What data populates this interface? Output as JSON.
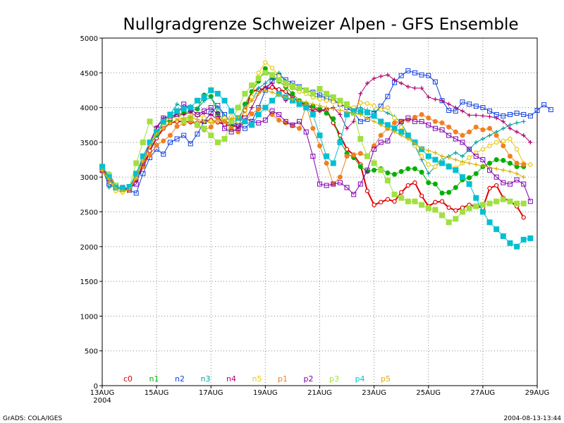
{
  "chart_data": {
    "type": "line",
    "title": "Nullgradgrenze Schweizer Alpen - GFS Ensemble",
    "ylim": [
      0,
      5000
    ],
    "yticks": [
      0,
      500,
      1000,
      1500,
      2000,
      2500,
      3000,
      3500,
      4000,
      4500,
      5000
    ],
    "xlim": [
      0,
      16
    ],
    "xticks": [
      {
        "pos": 0,
        "label": "13AUG",
        "sub": "2004"
      },
      {
        "pos": 2,
        "label": "15AUG"
      },
      {
        "pos": 4,
        "label": "17AUG"
      },
      {
        "pos": 6,
        "label": "19AUG"
      },
      {
        "pos": 8,
        "label": "21AUG"
      },
      {
        "pos": 10,
        "label": "23AUG"
      },
      {
        "pos": 12,
        "label": "25AUG"
      },
      {
        "pos": 14,
        "label": "27AUG"
      },
      {
        "pos": 16,
        "label": "29AUG"
      }
    ],
    "grid": true,
    "footer_left": "GrADS: COLA/IGES",
    "footer_right": "2004-08-13-13:44",
    "step_days": 0.25,
    "series": [
      {
        "name": "c0",
        "color": "#e00000",
        "marker": "circle-open",
        "width": 2,
        "values": [
          3100,
          3000,
          2860,
          2840,
          2820,
          2960,
          3150,
          3380,
          3560,
          3700,
          3780,
          3800,
          3800,
          3790,
          3780,
          3800,
          3820,
          3790,
          3760,
          3730,
          3740,
          3960,
          4230,
          4260,
          4270,
          4290,
          4260,
          4230,
          4150,
          4080,
          4030,
          3990,
          3960,
          3970,
          3780,
          3600,
          3400,
          3320,
          3180,
          2800,
          2600,
          2640,
          2680,
          2650,
          2780,
          2880,
          2920,
          2730,
          2580,
          2640,
          2650,
          2560,
          2520,
          2560,
          2600,
          2580,
          2560,
          2840,
          2880,
          2700,
          2650,
          2580,
          2420
        ]
      },
      {
        "name": "n1",
        "color": "#00b000",
        "marker": "circle-fill",
        "width": 1,
        "values": [
          3150,
          2980,
          2870,
          2830,
          2840,
          3050,
          3250,
          3480,
          3600,
          3780,
          3820,
          3900,
          3920,
          3950,
          3980,
          4180,
          4160,
          3920,
          3800,
          3740,
          3800,
          4050,
          4230,
          4380,
          4560,
          4430,
          4380,
          4300,
          4200,
          4100,
          4050,
          4020,
          3980,
          3920,
          3840,
          3520,
          3340,
          3280,
          3150,
          3080,
          3100,
          3120,
          3060,
          3040,
          3080,
          3120,
          3120,
          3070,
          2920,
          2900,
          2770,
          2780,
          2850,
          2960,
          2990,
          3050,
          3150,
          3200,
          3250,
          3240,
          3200,
          3150,
          3150
        ]
      },
      {
        "name": "n2",
        "color": "#1040e0",
        "marker": "square-open",
        "width": 1,
        "values": [
          3120,
          2900,
          2850,
          2850,
          2810,
          2770,
          3050,
          3280,
          3400,
          3330,
          3500,
          3550,
          3600,
          3480,
          3620,
          3800,
          3920,
          4030,
          3900,
          3780,
          3750,
          3700,
          3800,
          4000,
          4250,
          4380,
          4460,
          4400,
          4350,
          4300,
          4250,
          4220,
          4180,
          4130,
          4100,
          4050,
          4000,
          3930,
          3800,
          3830,
          3910,
          4020,
          4160,
          4360,
          4460,
          4530,
          4500,
          4470,
          4460,
          4370,
          4100,
          3960,
          3950,
          4080,
          4050,
          4020,
          4000,
          3950,
          3900,
          3880,
          3900,
          3920,
          3900,
          3880,
          3960,
          4040,
          3970
        ]
      },
      {
        "name": "n3",
        "color": "#00a0a0",
        "marker": "plus",
        "width": 1,
        "values": [
          3130,
          2850,
          2880,
          2820,
          2850,
          3010,
          3200,
          3450,
          3600,
          3780,
          3900,
          4050,
          4000,
          4020,
          3980,
          4100,
          4150,
          4000,
          3880,
          3790,
          3820,
          4020,
          4100,
          4280,
          4350,
          4450,
          4500,
          4380,
          4300,
          4230,
          4200,
          4150,
          4170,
          4200,
          4120,
          4050,
          4020,
          3980,
          4000,
          3960,
          3950,
          3970,
          3920,
          3870,
          3780,
          3600,
          3450,
          3250,
          3050,
          3150,
          3250,
          3300,
          3350,
          3300,
          3400,
          3500,
          3550,
          3600,
          3650,
          3700,
          3750,
          3780,
          3800
        ]
      },
      {
        "name": "n4",
        "color": "#b00070",
        "marker": "plus",
        "width": 1,
        "values": [
          3130,
          3050,
          2880,
          2830,
          2830,
          2950,
          3250,
          3500,
          3720,
          3850,
          3860,
          3890,
          3900,
          3930,
          3870,
          3920,
          3900,
          3820,
          3800,
          3780,
          3700,
          3800,
          4000,
          4200,
          4300,
          4350,
          4200,
          4100,
          4150,
          4060,
          4000,
          3950,
          3950,
          3980,
          4000,
          3900,
          3700,
          3800,
          4200,
          4350,
          4420,
          4450,
          4470,
          4400,
          4350,
          4300,
          4280,
          4280,
          4150,
          4120,
          4100,
          4050,
          4000,
          3950,
          3890,
          3890,
          3880,
          3870,
          3850,
          3800,
          3700,
          3650,
          3600,
          3500
        ]
      },
      {
        "name": "n5",
        "color": "#e8c800",
        "marker": "circle-open",
        "width": 1,
        "values": [
          3100,
          2960,
          2800,
          2780,
          2820,
          3000,
          3250,
          3480,
          3640,
          3780,
          3850,
          3860,
          3820,
          3880,
          3900,
          3850,
          3800,
          3820,
          3850,
          3870,
          3800,
          3900,
          4150,
          4500,
          4650,
          4570,
          4450,
          4320,
          4280,
          4230,
          4200,
          4150,
          4120,
          4100,
          4080,
          4050,
          4030,
          4000,
          4070,
          4060,
          4020,
          3970,
          4000,
          3850,
          3720,
          3600,
          3450,
          3300,
          3180,
          3150,
          3230,
          3170,
          3130,
          3200,
          3280,
          3350,
          3400,
          3450,
          3500,
          3520,
          3550,
          3400,
          3200,
          3180
        ]
      },
      {
        "name": "p1",
        "color": "#f08020",
        "marker": "circle-fill",
        "width": 1,
        "values": [
          3080,
          2950,
          2850,
          2820,
          2810,
          3030,
          3150,
          3320,
          3460,
          3520,
          3600,
          3730,
          3770,
          3810,
          3740,
          3680,
          3720,
          3850,
          3800,
          3700,
          3650,
          3800,
          3910,
          3980,
          4000,
          3900,
          3820,
          3780,
          3740,
          3700,
          4030,
          3700,
          3450,
          3200,
          2900,
          3000,
          3300,
          3320,
          3340,
          3300,
          3450,
          3600,
          3700,
          3780,
          3800,
          3820,
          3860,
          3900,
          3850,
          3800,
          3780,
          3720,
          3650,
          3600,
          3650,
          3720,
          3680,
          3700,
          3600,
          3450,
          3300,
          3200,
          3180
        ]
      },
      {
        "name": "p2",
        "color": "#8000b0",
        "marker": "square-open",
        "width": 1,
        "values": [
          3100,
          2980,
          2870,
          2830,
          2840,
          2900,
          3200,
          3500,
          3700,
          3850,
          3880,
          3900,
          4050,
          3980,
          3900,
          3950,
          4000,
          3900,
          3700,
          3650,
          3700,
          3850,
          3800,
          3780,
          3820,
          3950,
          3900,
          3800,
          3750,
          3800,
          3650,
          3300,
          2900,
          2880,
          2900,
          2920,
          2850,
          2750,
          2900,
          3100,
          3400,
          3500,
          3520,
          3700,
          3800,
          3850,
          3800,
          3800,
          3750,
          3700,
          3680,
          3600,
          3550,
          3500,
          3400,
          3300,
          3250,
          3100,
          3000,
          2920,
          2900,
          2960,
          2900,
          2650
        ]
      },
      {
        "name": "p3",
        "color": "#a0e040",
        "marker": "square-fill",
        "width": 1,
        "values": [
          3150,
          3030,
          2880,
          2830,
          2860,
          3200,
          3500,
          3800,
          3650,
          3780,
          3900,
          3950,
          3800,
          3850,
          3750,
          3700,
          3600,
          3500,
          3550,
          3800,
          4000,
          4200,
          4320,
          4420,
          4500,
          4470,
          4400,
          4350,
          4300,
          4280,
          4250,
          4200,
          4270,
          4200,
          4150,
          4100,
          4050,
          3920,
          3550,
          3300,
          3200,
          3100,
          2950,
          2750,
          2700,
          2650,
          2650,
          2600,
          2550,
          2530,
          2450,
          2350,
          2400,
          2500,
          2550,
          2580,
          2600,
          2620,
          2650,
          2680,
          2650,
          2620,
          2620
        ]
      },
      {
        "name": "p4",
        "color": "#00c0d0",
        "marker": "square-fill",
        "width": 1,
        "values": [
          3150,
          3000,
          2850,
          2830,
          2860,
          3050,
          3300,
          3500,
          3650,
          3800,
          3900,
          3950,
          3980,
          4000,
          4100,
          4150,
          4250,
          4200,
          4100,
          3950,
          3850,
          3800,
          3750,
          3900,
          4000,
          4100,
          4200,
          4150,
          4100,
          4050,
          4000,
          3900,
          3600,
          3300,
          3200,
          3500,
          3900,
          3950,
          3940,
          3930,
          3880,
          3800,
          3750,
          3700,
          3650,
          3600,
          3500,
          3400,
          3300,
          3250,
          3200,
          3150,
          3100,
          3000,
          2900,
          2700,
          2500,
          2350,
          2250,
          2150,
          2050,
          2000,
          2100,
          2120
        ]
      },
      {
        "name": "p5",
        "color": "#d8b000",
        "marker": "plus",
        "width": 1,
        "values": [
          3100,
          2970,
          2830,
          2800,
          2820,
          2980,
          3230,
          3450,
          3620,
          3700,
          3780,
          3820,
          3850,
          3860,
          3830,
          3800,
          3780,
          3800,
          3820,
          3840,
          3860,
          4000,
          4100,
          4200,
          4250,
          4220,
          4180,
          4150,
          4120,
          4100,
          4080,
          4050,
          4030,
          4000,
          3980,
          3960,
          3940,
          3920,
          3900,
          3850,
          3800,
          3750,
          3700,
          3650,
          3600,
          3550,
          3480,
          3420,
          3380,
          3350,
          3300,
          3280,
          3250,
          3220,
          3200,
          3180,
          3160,
          3140,
          3120,
          3100,
          3080,
          3050,
          3000
        ]
      }
    ]
  }
}
